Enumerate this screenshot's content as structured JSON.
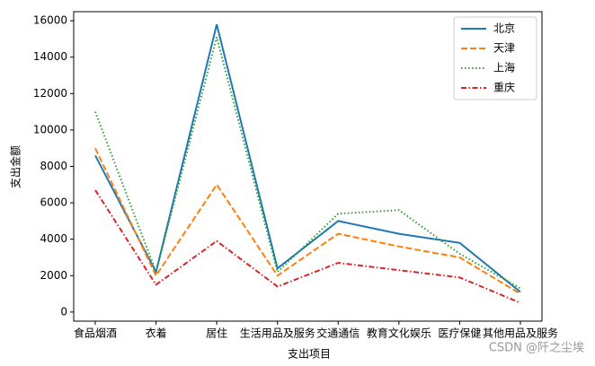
{
  "chart_data": {
    "type": "line",
    "xlabel": "支出项目",
    "ylabel": "支出金额",
    "categories": [
      "食品烟酒",
      "衣着",
      "居住",
      "生活用品及服务",
      "交通通信",
      "教育文化娱乐",
      "医疗保健",
      "其他用品及服务"
    ],
    "series": [
      {
        "name": "北京",
        "color": "#1f77b4",
        "linestyle": "solid",
        "values": [
          8600,
          2200,
          15800,
          2400,
          5000,
          4300,
          3800,
          1100
        ]
      },
      {
        "name": "天津",
        "color": "#ff7f0e",
        "linestyle": "dashed",
        "values": [
          9000,
          2000,
          7000,
          2000,
          4300,
          3600,
          3000,
          1000
        ]
      },
      {
        "name": "上海",
        "color": "#2ca02c",
        "linestyle": "dotted",
        "values": [
          11000,
          2200,
          15100,
          2200,
          5400,
          5600,
          3200,
          1300
        ]
      },
      {
        "name": "重庆",
        "color": "#d62728",
        "linestyle": "dashdot",
        "values": [
          6700,
          1500,
          3900,
          1400,
          2700,
          2300,
          1900,
          500
        ]
      }
    ],
    "ylim": [
      -500,
      16500
    ],
    "yticks": [
      0,
      2000,
      4000,
      6000,
      8000,
      10000,
      12000,
      14000,
      16000
    ],
    "legend": "upper right",
    "watermark": "CSDN @阡之尘埃"
  }
}
